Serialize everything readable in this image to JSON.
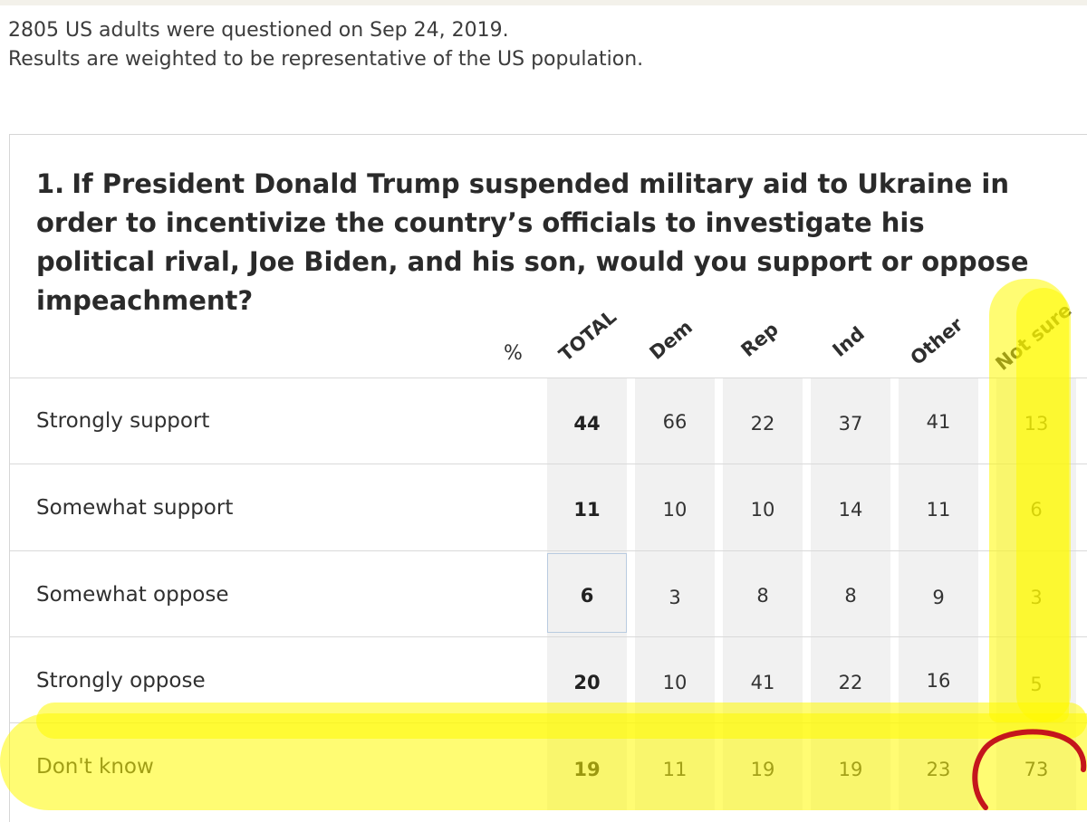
{
  "intro": {
    "line1": "2805 US adults were questioned on Sep 24, 2019.",
    "line2": "Results are weighted to be representative of the US population."
  },
  "question": {
    "number": "1.",
    "text": "If President Donald Trump suspended military aid to Ukraine in order to incentivize the country’s officials to investigate his political rival, Joe Biden, and his son, would you support or oppose impeachment?"
  },
  "table": {
    "unit_label": "%",
    "columns": [
      "TOTAL",
      "Dem",
      "Rep",
      "Ind",
      "Other",
      "Not sure"
    ],
    "rows": [
      {
        "label": "Strongly support",
        "values": [
          "44",
          "66",
          "22",
          "37",
          "41",
          "13"
        ]
      },
      {
        "label": "Somewhat support",
        "values": [
          "11",
          "10",
          "10",
          "14",
          "11",
          "6"
        ]
      },
      {
        "label": "Somewhat oppose",
        "values": [
          "6",
          "3",
          "8",
          "8",
          "9",
          "3"
        ]
      },
      {
        "label": "Strongly oppose",
        "values": [
          "20",
          "10",
          "41",
          "22",
          "16",
          "5"
        ]
      },
      {
        "label": "Don't know",
        "values": [
          "19",
          "11",
          "19",
          "19",
          "23",
          "73"
        ]
      }
    ]
  },
  "annotations": {
    "highlight_color": "#ffff00",
    "circle_color": "#c4161c"
  }
}
